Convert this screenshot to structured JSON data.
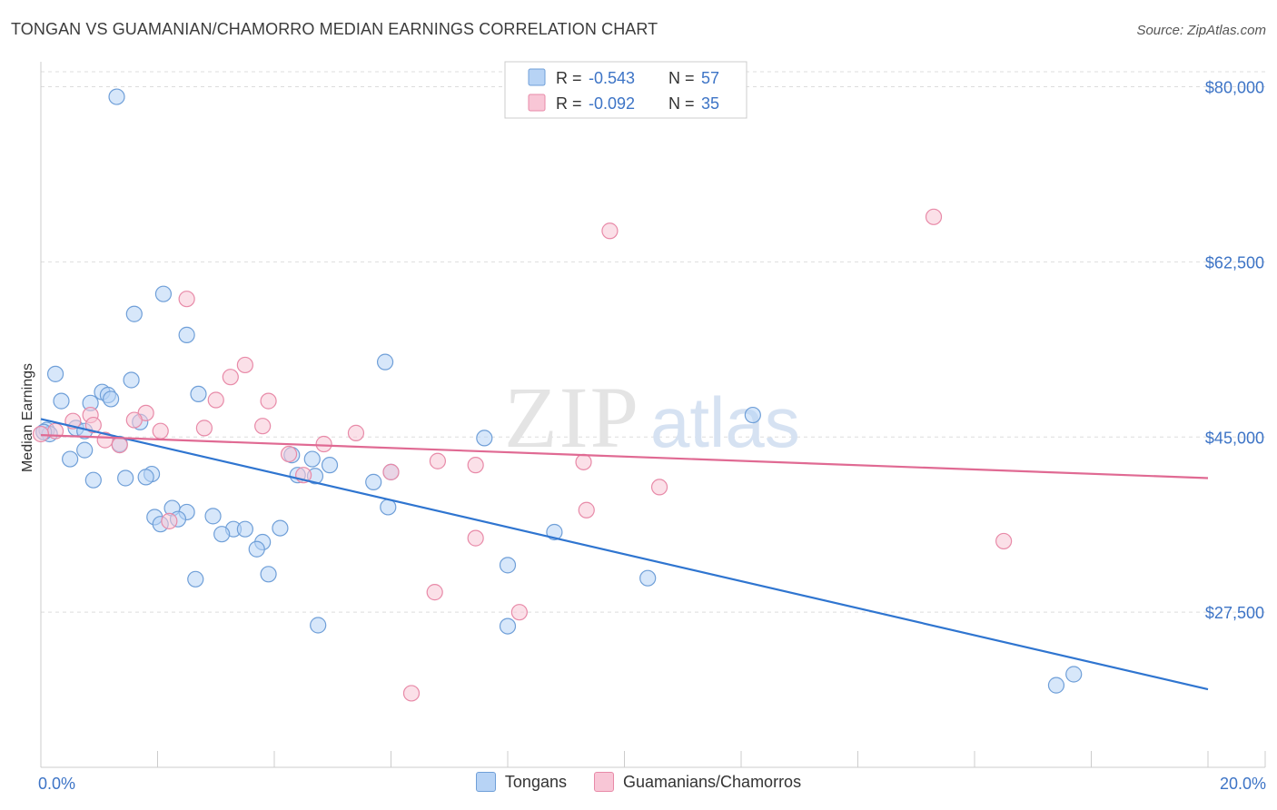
{
  "header": {
    "title": "TONGAN VS GUAMANIAN/CHAMORRO MEDIAN EARNINGS CORRELATION CHART",
    "source": "Source: ZipAtlas.com"
  },
  "watermark": {
    "zip": "ZIP",
    "atlas": "atlas"
  },
  "colors": {
    "blue_fill": "#b7d3f5",
    "blue_stroke": "#6f9fd8",
    "blue_line": "#2f75d0",
    "pink_fill": "#f8c6d6",
    "pink_stroke": "#e88aa8",
    "pink_line": "#e06a93",
    "axis_label": "#3d74c6",
    "grid": "#dddddd"
  },
  "stats_legend": [
    {
      "series": "Tongans",
      "r_label": "R = ",
      "r_value": "-0.543",
      "n_label": "N = ",
      "n_value": "57"
    },
    {
      "series": "Guamanians/Chamorros",
      "r_label": "R = ",
      "r_value": "-0.092",
      "n_label": "N = ",
      "n_value": "35"
    }
  ],
  "chart_data": {
    "type": "scatter",
    "title": "TONGAN VS GUAMANIAN/CHAMORRO MEDIAN EARNINGS CORRELATION CHART",
    "xlabel": "",
    "ylabel": "Median Earnings",
    "xlim": [
      0,
      20
    ],
    "ylim": [
      12000,
      82500
    ],
    "x_tick_labels": [
      "0.0%",
      "20.0%"
    ],
    "y_ticks": [
      80000,
      62500,
      45000,
      27500
    ],
    "y_tick_labels": [
      "$80,000",
      "$62,500",
      "$45,000",
      "$27,500"
    ],
    "grid": true,
    "legend": [
      "Tongans",
      "Guamanians/Chamorros"
    ],
    "series": [
      {
        "name": "Tongans",
        "trend": {
          "x": [
            0,
            20
          ],
          "y": [
            46800,
            19800
          ]
        },
        "points": [
          [
            1.3,
            79000
          ],
          [
            2.1,
            59300
          ],
          [
            1.6,
            57300
          ],
          [
            2.5,
            55200
          ],
          [
            5.9,
            52500
          ],
          [
            0.25,
            51300
          ],
          [
            1.55,
            50700
          ],
          [
            1.05,
            49500
          ],
          [
            1.15,
            49200
          ],
          [
            2.7,
            49300
          ],
          [
            0.35,
            48600
          ],
          [
            0.85,
            48400
          ],
          [
            1.2,
            48800
          ],
          [
            12.2,
            47200
          ],
          [
            1.7,
            46500
          ],
          [
            0.6,
            45900
          ],
          [
            0.75,
            45600
          ],
          [
            0.1,
            45700
          ],
          [
            0.15,
            45300
          ],
          [
            7.6,
            44900
          ],
          [
            0.75,
            43700
          ],
          [
            0.5,
            42800
          ],
          [
            1.35,
            44300
          ],
          [
            4.3,
            43200
          ],
          [
            4.65,
            42800
          ],
          [
            4.95,
            42200
          ],
          [
            1.9,
            41300
          ],
          [
            1.8,
            41000
          ],
          [
            4.4,
            41200
          ],
          [
            4.7,
            41100
          ],
          [
            0.9,
            40700
          ],
          [
            1.45,
            40900
          ],
          [
            5.7,
            40500
          ],
          [
            6.0,
            41500
          ],
          [
            5.95,
            38000
          ],
          [
            2.25,
            37900
          ],
          [
            2.5,
            37500
          ],
          [
            2.95,
            37100
          ],
          [
            1.95,
            37000
          ],
          [
            2.35,
            36800
          ],
          [
            2.05,
            36300
          ],
          [
            3.3,
            35800
          ],
          [
            3.5,
            35800
          ],
          [
            4.1,
            35900
          ],
          [
            3.1,
            35300
          ],
          [
            8.8,
            35500
          ],
          [
            3.8,
            34500
          ],
          [
            3.7,
            33800
          ],
          [
            8.0,
            32200
          ],
          [
            3.9,
            31300
          ],
          [
            2.65,
            30800
          ],
          [
            10.4,
            30900
          ],
          [
            4.75,
            26200
          ],
          [
            8.0,
            26100
          ],
          [
            17.7,
            21300
          ],
          [
            17.4,
            20200
          ],
          [
            0.05,
            45500
          ]
        ]
      },
      {
        "name": "Guamanians/Chamorros",
        "trend": {
          "x": [
            0,
            20
          ],
          "y": [
            45200,
            40900
          ]
        },
        "points": [
          [
            15.3,
            67000
          ],
          [
            9.75,
            65600
          ],
          [
            2.5,
            58800
          ],
          [
            3.5,
            52200
          ],
          [
            3.25,
            51000
          ],
          [
            3.9,
            48600
          ],
          [
            3.0,
            48700
          ],
          [
            1.8,
            47400
          ],
          [
            0.85,
            47200
          ],
          [
            1.6,
            46700
          ],
          [
            0.55,
            46600
          ],
          [
            0.9,
            46200
          ],
          [
            3.8,
            46100
          ],
          [
            2.8,
            45900
          ],
          [
            2.05,
            45600
          ],
          [
            5.4,
            45400
          ],
          [
            0.25,
            45600
          ],
          [
            1.1,
            44700
          ],
          [
            1.35,
            44200
          ],
          [
            4.85,
            44300
          ],
          [
            4.25,
            43300
          ],
          [
            6.8,
            42600
          ],
          [
            7.45,
            42200
          ],
          [
            9.3,
            42500
          ],
          [
            4.5,
            41200
          ],
          [
            6.0,
            41500
          ],
          [
            10.6,
            40000
          ],
          [
            9.35,
            37700
          ],
          [
            7.45,
            34900
          ],
          [
            16.5,
            34600
          ],
          [
            2.2,
            36600
          ],
          [
            6.75,
            29500
          ],
          [
            8.2,
            27500
          ],
          [
            6.35,
            19400
          ],
          [
            0.0,
            45300
          ]
        ]
      }
    ]
  }
}
